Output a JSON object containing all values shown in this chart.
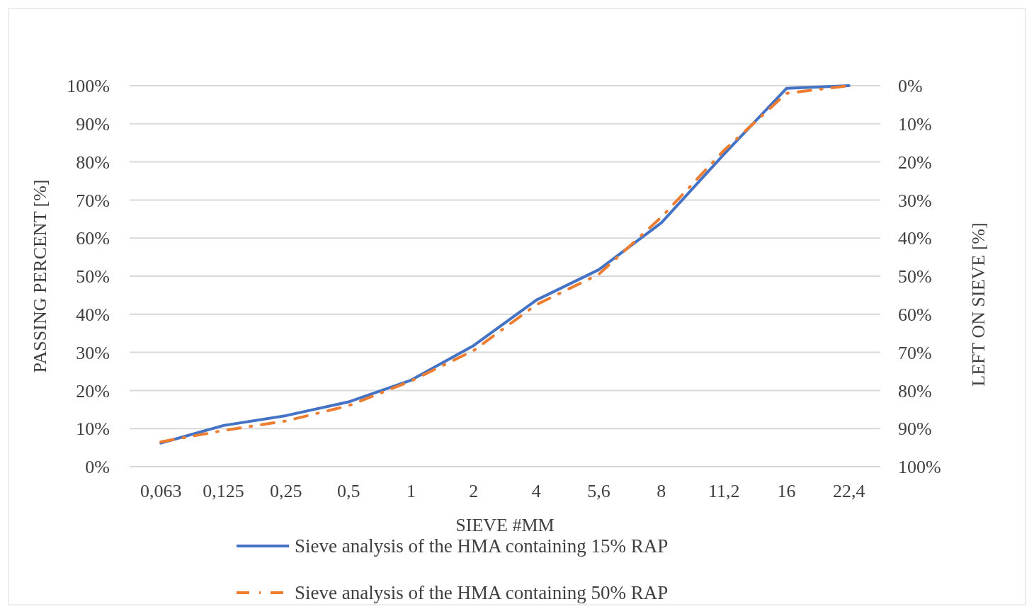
{
  "chart_data": {
    "type": "line",
    "xlabel": "SIEVE #MM",
    "ylabel": "PASSING PERCENT  [%]",
    "y2label": "LEFT ON SIEVE [%]",
    "categories": [
      "0,063",
      "0,125",
      "0,25",
      "0,5",
      "1",
      "2",
      "4",
      "5,6",
      "8",
      "11,2",
      "16",
      "22,4"
    ],
    "ylim": [
      0,
      100
    ],
    "yticks": [
      {
        "value": 0,
        "label": "0%"
      },
      {
        "value": 10,
        "label": "10%"
      },
      {
        "value": 20,
        "label": "20%"
      },
      {
        "value": 30,
        "label": "30%"
      },
      {
        "value": 40,
        "label": "40%"
      },
      {
        "value": 50,
        "label": "50%"
      },
      {
        "value": 60,
        "label": "60%"
      },
      {
        "value": 70,
        "label": "70%"
      },
      {
        "value": 80,
        "label": "80%"
      },
      {
        "value": 90,
        "label": "90%"
      },
      {
        "value": 100,
        "label": "100%"
      }
    ],
    "y2lim": [
      100,
      0
    ],
    "y2ticks": [
      {
        "value": 0,
        "label": "0%"
      },
      {
        "value": 10,
        "label": "10%"
      },
      {
        "value": 20,
        "label": "20%"
      },
      {
        "value": 30,
        "label": "30%"
      },
      {
        "value": 40,
        "label": "40%"
      },
      {
        "value": 50,
        "label": "50%"
      },
      {
        "value": 60,
        "label": "60%"
      },
      {
        "value": 70,
        "label": "70%"
      },
      {
        "value": 80,
        "label": "80%"
      },
      {
        "value": 90,
        "label": "90%"
      },
      {
        "value": 100,
        "label": "100%"
      }
    ],
    "grid": "y",
    "legend": "bottom",
    "marker": "none",
    "series": [
      {
        "name": "Sieve analysis of the HMA containing 15% RAP",
        "color": "#4472c4",
        "line_style": "solid",
        "values": [
          6.2,
          10.8,
          13.4,
          17,
          22.7,
          31.8,
          43.7,
          51.7,
          64,
          82,
          99.3,
          100
        ]
      },
      {
        "name": "Sieve analysis of the HMA containing 50% RAP",
        "color": "#ed7d31",
        "line_style": "dashdot",
        "values": [
          6.5,
          9.5,
          12,
          16,
          22.5,
          30.5,
          42.5,
          50.5,
          65.5,
          83,
          98,
          100
        ]
      }
    ]
  }
}
